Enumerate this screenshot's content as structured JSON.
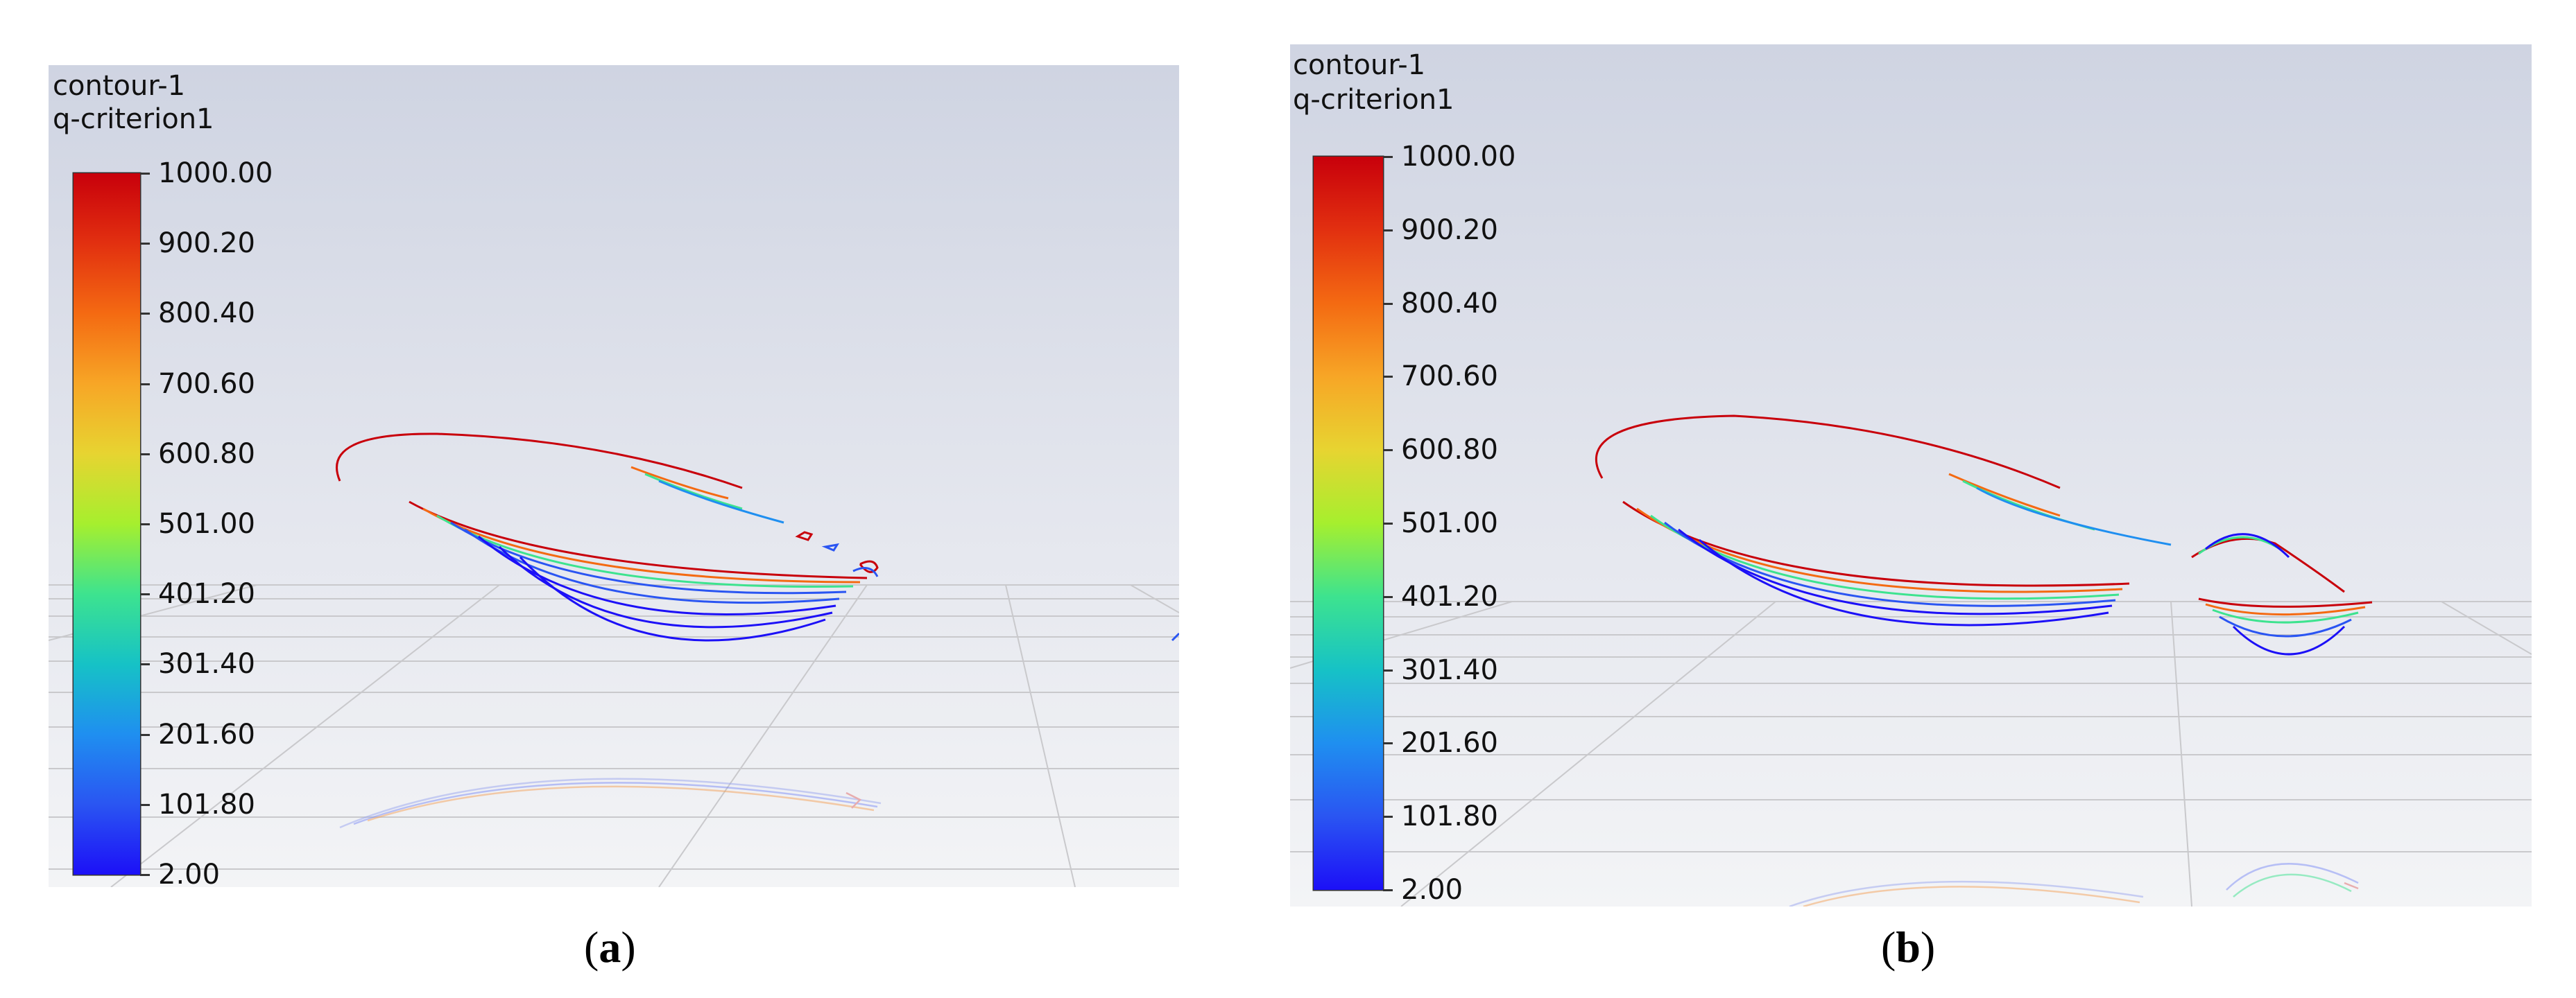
{
  "panels": [
    {
      "id": "a",
      "title_lines": [
        "contour-1",
        "q-criterion1"
      ],
      "colorbar": {
        "labels": [
          "1000.00",
          "900.20",
          "800.40",
          "700.60",
          "600.80",
          "501.00",
          "401.20",
          "301.40",
          "201.60",
          "101.80",
          "2.00"
        ],
        "colors": [
          "#c8000b",
          "#e23010",
          "#f46a12",
          "#f7a626",
          "#e7d431",
          "#a6ef2e",
          "#3de38f",
          "#16c2c6",
          "#1f8ff0",
          "#2a55f2",
          "#1c10f7"
        ]
      },
      "caption_letter": "a"
    },
    {
      "id": "b",
      "title_lines": [
        "contour-1",
        "q-criterion1"
      ],
      "colorbar": {
        "labels": [
          "1000.00",
          "900.20",
          "800.40",
          "700.60",
          "600.80",
          "501.00",
          "401.20",
          "301.40",
          "201.60",
          "101.80",
          "2.00"
        ],
        "colors": [
          "#c8000b",
          "#e23010",
          "#f46a12",
          "#f7a626",
          "#e7d431",
          "#a6ef2e",
          "#3de38f",
          "#16c2c6",
          "#1f8ff0",
          "#2a55f2",
          "#1c10f7"
        ]
      },
      "caption_letter": "b"
    }
  ]
}
